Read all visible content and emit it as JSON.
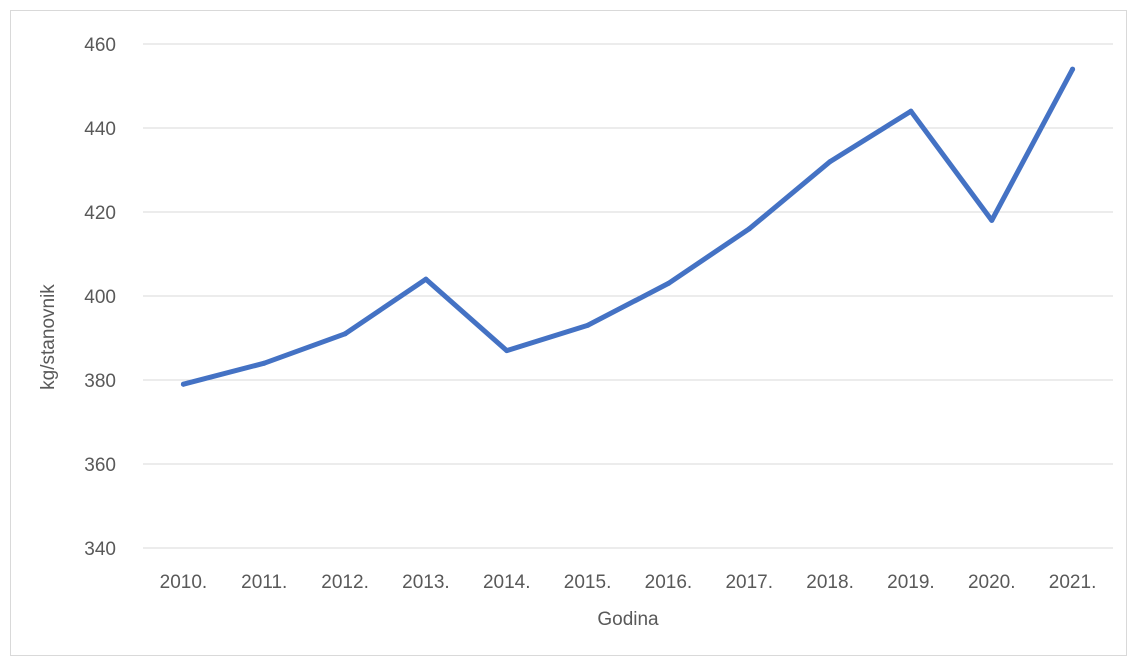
{
  "chart_data": {
    "type": "line",
    "categories": [
      "2010.",
      "2011.",
      "2012.",
      "2013.",
      "2014.",
      "2015.",
      "2016.",
      "2017.",
      "2018.",
      "2019.",
      "2020.",
      "2021."
    ],
    "series": [
      {
        "values": [
          379,
          384,
          391,
          404,
          387,
          393,
          403,
          416,
          432,
          444,
          418,
          454
        ]
      }
    ],
    "title": "",
    "xlabel": "Godina",
    "ylabel": "kg/stanovnik",
    "ylim": [
      340,
      460
    ],
    "yticks": [
      340,
      360,
      380,
      400,
      420,
      440,
      460
    ],
    "grid": true,
    "legend": "none",
    "line_color": "#4472c4",
    "grid_color": "#d9d9d9",
    "text_color": "#595959"
  }
}
